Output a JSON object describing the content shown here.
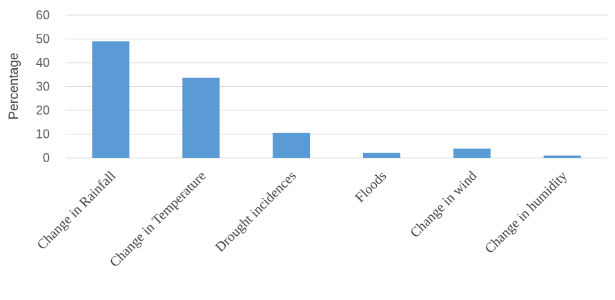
{
  "chart_data": {
    "type": "bar",
    "categories": [
      "Change in Rainfall",
      "Change in Temperature",
      "Drought incidences",
      "Floods",
      "Change in wind",
      "Change in humidity"
    ],
    "values": [
      49,
      33.7,
      10.5,
      2.1,
      3.9,
      1
    ],
    "ylabel": "Percentage",
    "ylim": [
      0,
      60
    ],
    "yticks": [
      0,
      10,
      20,
      30,
      40,
      50,
      60
    ],
    "grid": true,
    "legend": "none",
    "bar_color": "#5b9bd5"
  }
}
